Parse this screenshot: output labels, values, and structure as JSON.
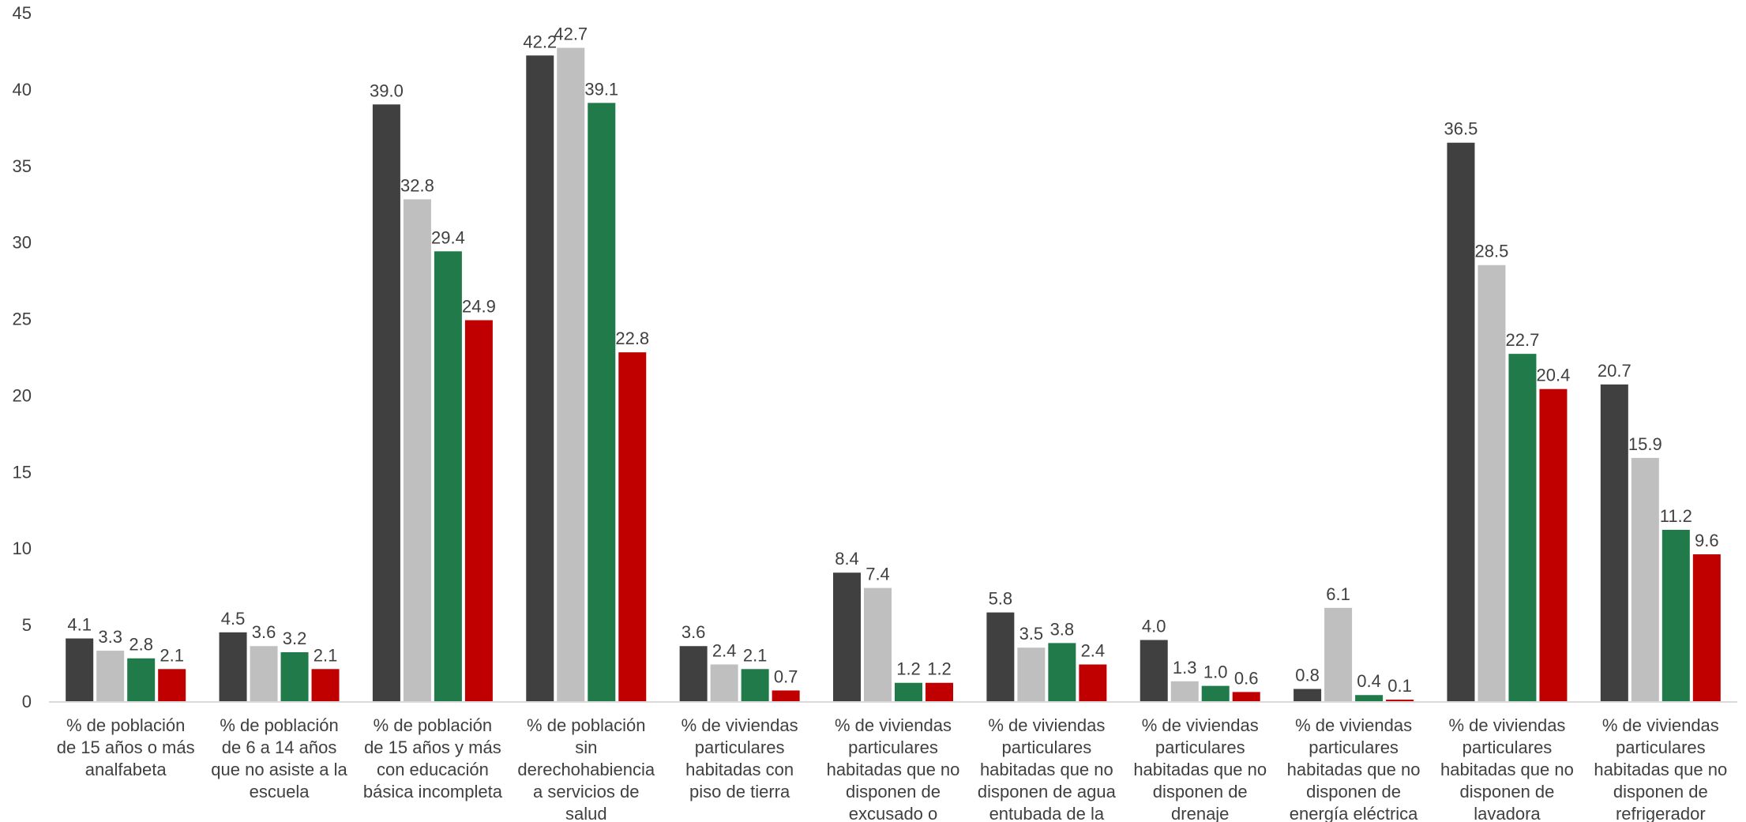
{
  "chart_data": {
    "type": "bar",
    "title": "",
    "xlabel": "",
    "ylabel": "",
    "ylim": [
      0,
      45
    ],
    "yticks": [
      0,
      5,
      10,
      15,
      20,
      25,
      30,
      35,
      40,
      45
    ],
    "grid": false,
    "legend": "none",
    "categories": [
      [
        "% de población",
        "de 15 años o más",
        "analfabeta"
      ],
      [
        "% de población",
        "de 6 a 14 años",
        "que no asiste a la",
        "escuela"
      ],
      [
        "% de población",
        "de 15 años y más",
        "con educación",
        "básica incompleta"
      ],
      [
        "% de población",
        "sin",
        "derechohabiencia",
        "a servicios de",
        "salud"
      ],
      [
        "% de viviendas",
        "particulares",
        "habitadas con",
        "piso de tierra"
      ],
      [
        "% de viviendas",
        "particulares",
        "habitadas que no",
        "disponen de",
        "excusado o"
      ],
      [
        "% de viviendas",
        "particulares",
        "habitadas que no",
        "disponen de agua",
        "entubada de la"
      ],
      [
        "% de viviendas",
        "particulares",
        "habitadas que no",
        "disponen de",
        "drenaje"
      ],
      [
        "% de viviendas",
        "particulares",
        "habitadas que no",
        "disponen de",
        "energía eléctrica"
      ],
      [
        "% de viviendas",
        "particulares",
        "habitadas que no",
        "disponen de",
        "lavadora"
      ],
      [
        "% de viviendas",
        "particulares",
        "habitadas que no",
        "disponen de",
        "refrigerador"
      ]
    ],
    "series": [
      {
        "color": "#404040",
        "values": [
          4.1,
          4.5,
          39.0,
          42.2,
          3.6,
          8.4,
          5.8,
          4.0,
          0.8,
          36.5,
          20.7
        ]
      },
      {
        "color": "#bfbfbf",
        "values": [
          3.3,
          3.6,
          32.8,
          42.7,
          2.4,
          7.4,
          3.5,
          1.3,
          6.1,
          28.5,
          15.9
        ]
      },
      {
        "color": "#217a4a",
        "values": [
          2.8,
          3.2,
          29.4,
          39.1,
          2.1,
          1.2,
          3.8,
          1.0,
          0.4,
          22.7,
          11.2
        ]
      },
      {
        "color": "#c00000",
        "values": [
          2.1,
          2.1,
          24.9,
          22.8,
          0.7,
          1.2,
          2.4,
          0.6,
          0.1,
          20.4,
          9.6
        ]
      }
    ]
  }
}
